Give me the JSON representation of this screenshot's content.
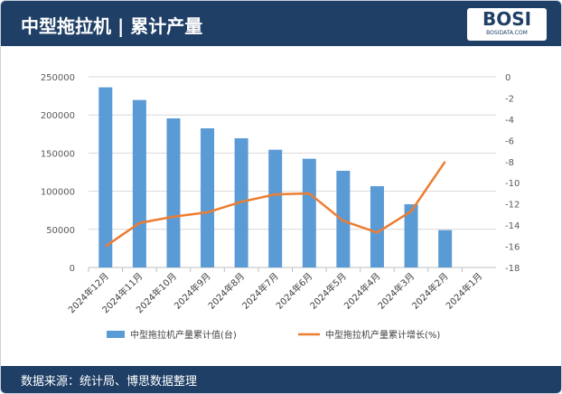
{
  "header": {
    "title": "中型拖拉机 | 累计产量",
    "logo_text": "BOSI",
    "logo_sub": "BOSIDATA.COM"
  },
  "footer": {
    "source": "数据来源：统计局、博思数据整理"
  },
  "colors": {
    "bar": "#5b9bd5",
    "line": "#ed7d31",
    "header": "#1f3f66"
  },
  "chart_data": {
    "type": "bar+line",
    "categories": [
      "2024年12月",
      "2024年11月",
      "2024年10月",
      "2024年9月",
      "2024年8月",
      "2024年7月",
      "2024年6月",
      "2024年5月",
      "2024年4月",
      "2024年3月",
      "2024年2月",
      "2024年1月"
    ],
    "series": [
      {
        "name": "中型拖拉机产量累计值(台)",
        "type": "bar",
        "axis": "left",
        "values": [
          236200,
          219600,
          195500,
          182500,
          169400,
          154400,
          142600,
          126800,
          106600,
          82900,
          49000,
          null
        ]
      },
      {
        "name": "中型拖拉机产量累计增长(%)",
        "type": "line",
        "axis": "right",
        "values": [
          -16.0,
          -13.8,
          -13.2,
          -12.8,
          -11.8,
          -11.1,
          -11.0,
          -13.6,
          -14.7,
          -12.7,
          -8.0,
          null
        ]
      }
    ],
    "left_axis": {
      "range": [
        0,
        250000
      ],
      "ticks": [
        "0",
        "50000",
        "100000",
        "150000",
        "200000",
        "250000"
      ]
    },
    "right_axis": {
      "range": [
        -18,
        0
      ],
      "ticks": [
        "0",
        "-2",
        "-4",
        "-6",
        "-8",
        "-10",
        "-12",
        "-14",
        "-16",
        "-18"
      ]
    },
    "grid": true,
    "legend": "bottom"
  }
}
